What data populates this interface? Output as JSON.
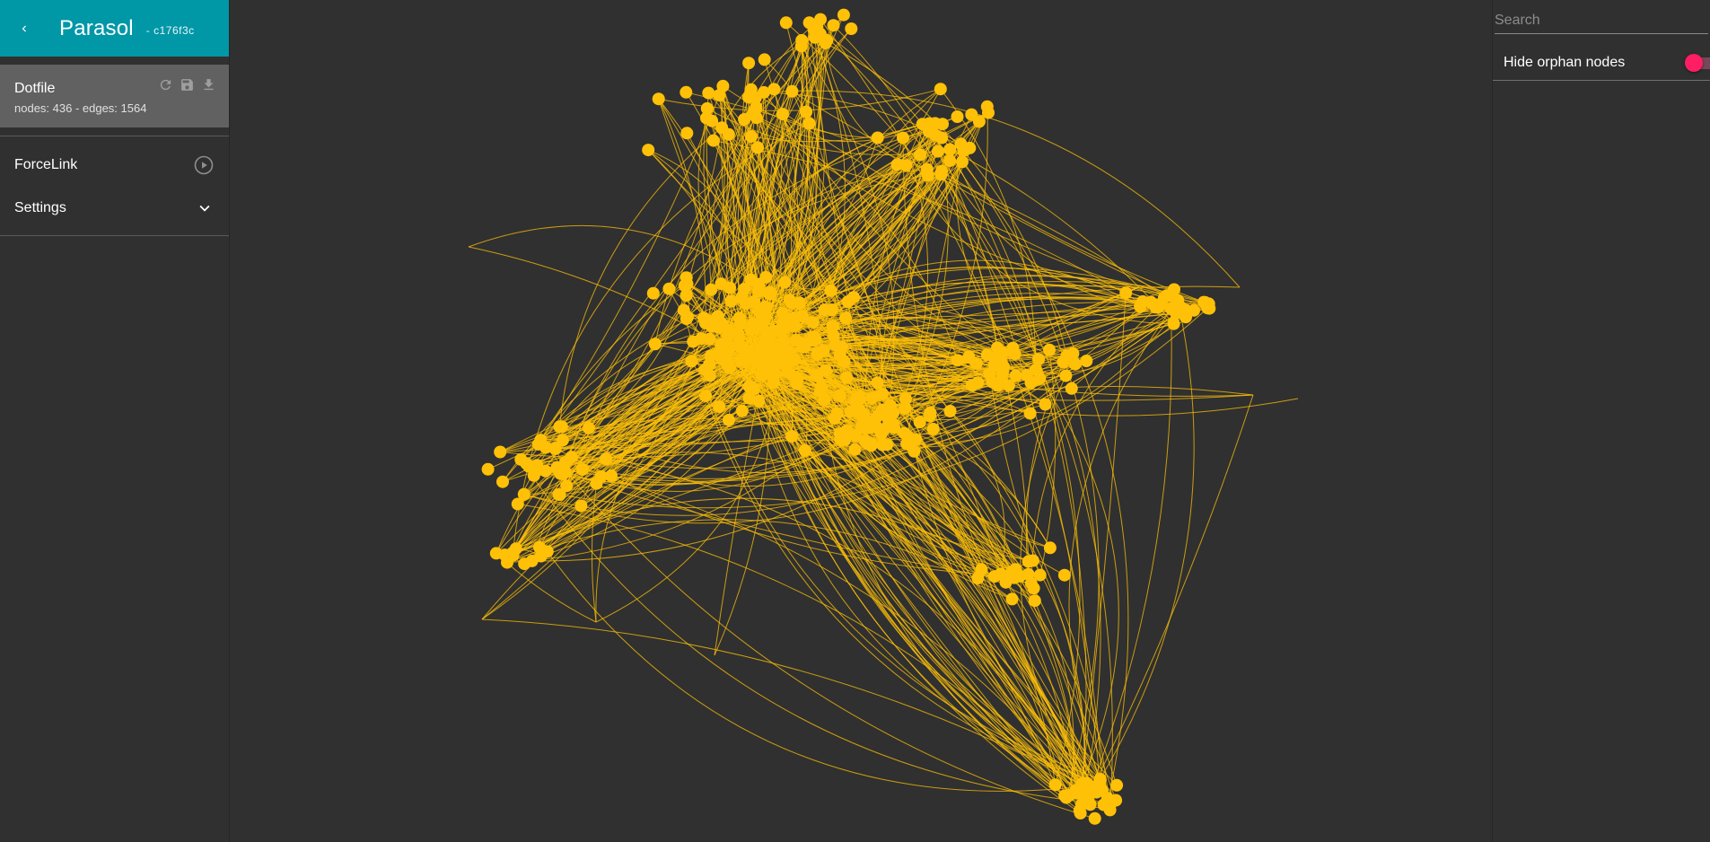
{
  "app": {
    "title": "Parasol",
    "version": "- c176f3c"
  },
  "sidebar": {
    "back_icon": "chevron-left-icon",
    "dotfile": {
      "title": "Dotfile",
      "stats": "nodes: 436 - edges: 1564",
      "actions": [
        "refresh-icon",
        "save-icon",
        "download-icon"
      ]
    },
    "items": [
      {
        "label": "ForceLink",
        "icon": "play-circle-icon"
      },
      {
        "label": "Settings",
        "icon": "chevron-down-icon"
      }
    ]
  },
  "right_panel": {
    "search": {
      "placeholder": "Search",
      "value": ""
    },
    "orphan": {
      "label": "Hide orphan nodes",
      "enabled": false
    }
  },
  "graph": {
    "node_count": 436,
    "edge_count": 1564,
    "node_color": "#ffc107",
    "edge_color": "#ffc107",
    "background": "#303030"
  },
  "colors": {
    "header": "#0097a7",
    "card": "#616161",
    "toggle_thumb": "#ff1e64"
  }
}
